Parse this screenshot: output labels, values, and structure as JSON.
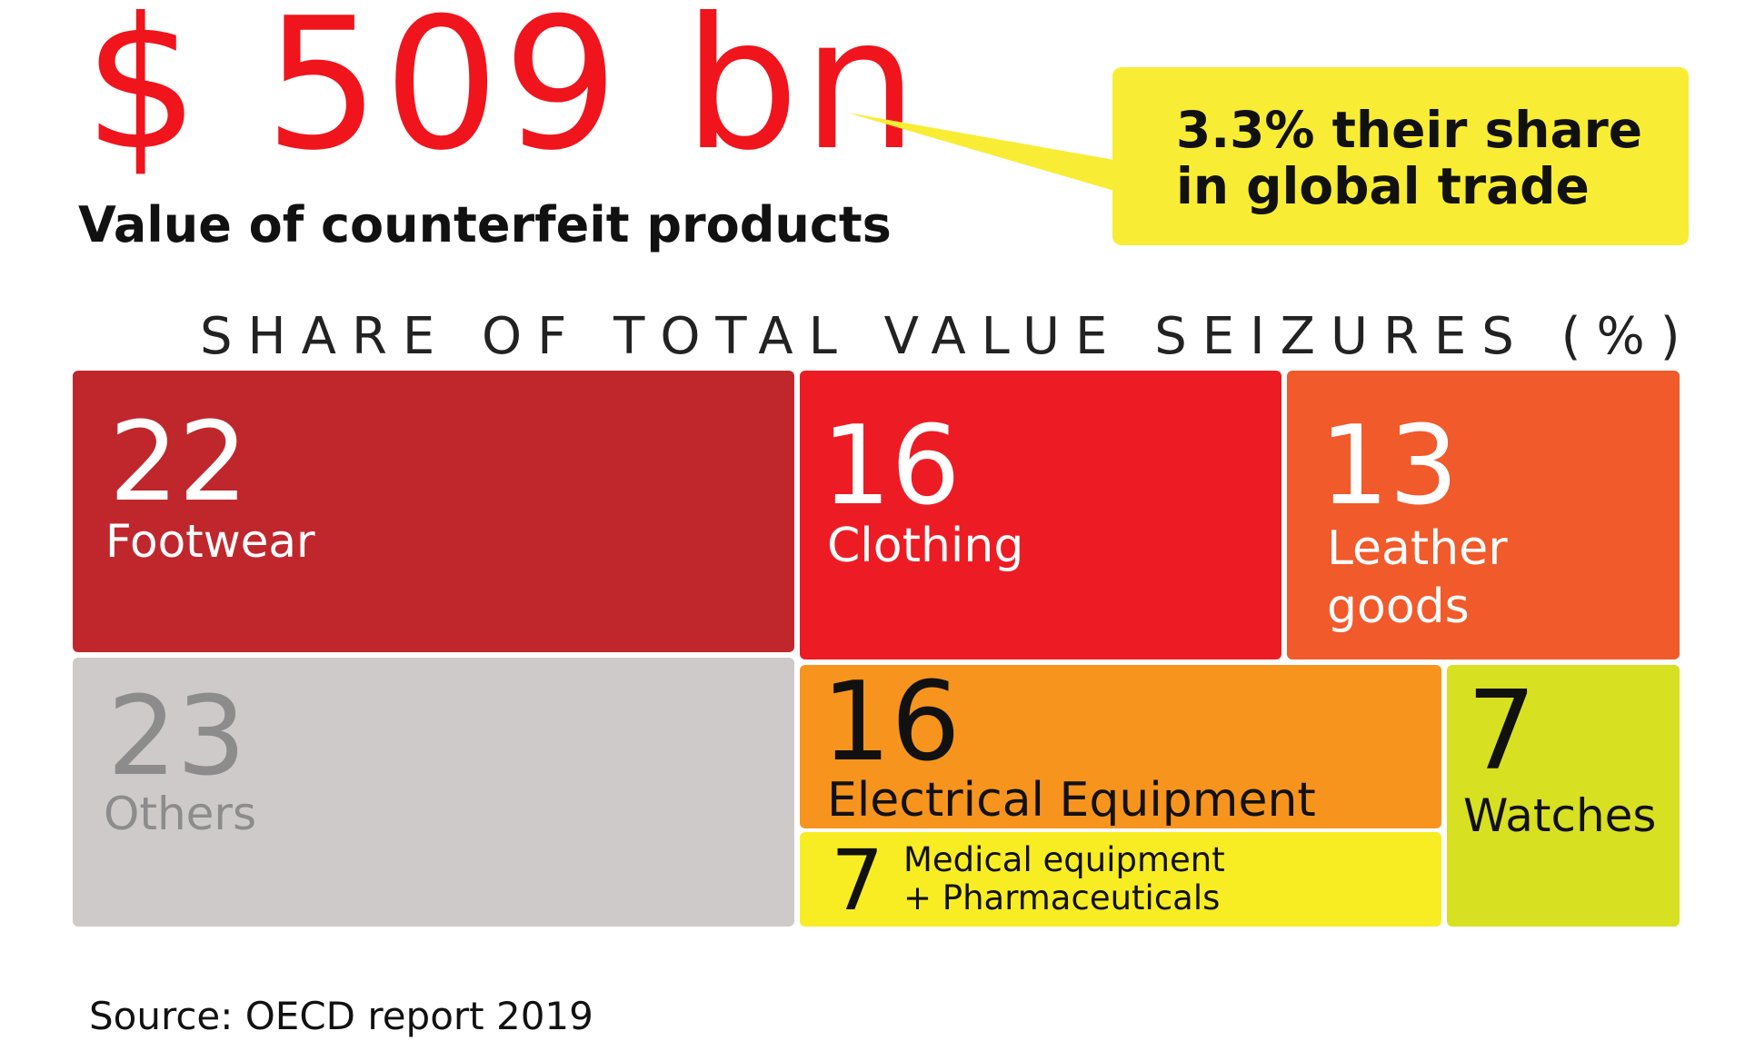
{
  "headline": {
    "value": "$ 509 bn",
    "subtitle": "Value of counterfeit products"
  },
  "callout": {
    "line1": "3.3% their share",
    "line2": "in global trade"
  },
  "chart_data": {
    "type": "treemap",
    "title": "SHARE OF TOTAL VALUE SEIZURES (%)",
    "categories": [
      "Footwear",
      "Clothing",
      "Leather goods",
      "Others",
      "Electrical Equipment",
      "Medical equipment + Pharmaceuticals",
      "Watches"
    ],
    "values": [
      22,
      16,
      13,
      23,
      16,
      7,
      7
    ],
    "tiles": [
      {
        "label": "Footwear",
        "value": "22",
        "color": "#c0272d",
        "text_color": "#ffffff"
      },
      {
        "label": "Clothing",
        "value": "16",
        "color": "#ed1c24",
        "text_color": "#ffffff"
      },
      {
        "label": "Leather goods",
        "label_lines": [
          "Leather",
          "goods"
        ],
        "value": "13",
        "color": "#f15a2b",
        "text_color": "#ffffff"
      },
      {
        "label": "Others",
        "value": "23",
        "color": "#cfcaca",
        "text_color": "#8c8c8c"
      },
      {
        "label": "Electrical Equipment",
        "value": "16",
        "color": "#f7941e",
        "text_color": "#111111"
      },
      {
        "label": "Medical equipment + Pharmaceuticals",
        "label_lines": [
          "Medical equipment",
          "+ Pharmaceuticals"
        ],
        "value": "7",
        "color": "#f8ec23",
        "text_color": "#111111"
      },
      {
        "label": "Watches",
        "value": "7",
        "color": "#d8e022",
        "text_color": "#111111"
      }
    ]
  },
  "source": "Source: OECD report 2019"
}
